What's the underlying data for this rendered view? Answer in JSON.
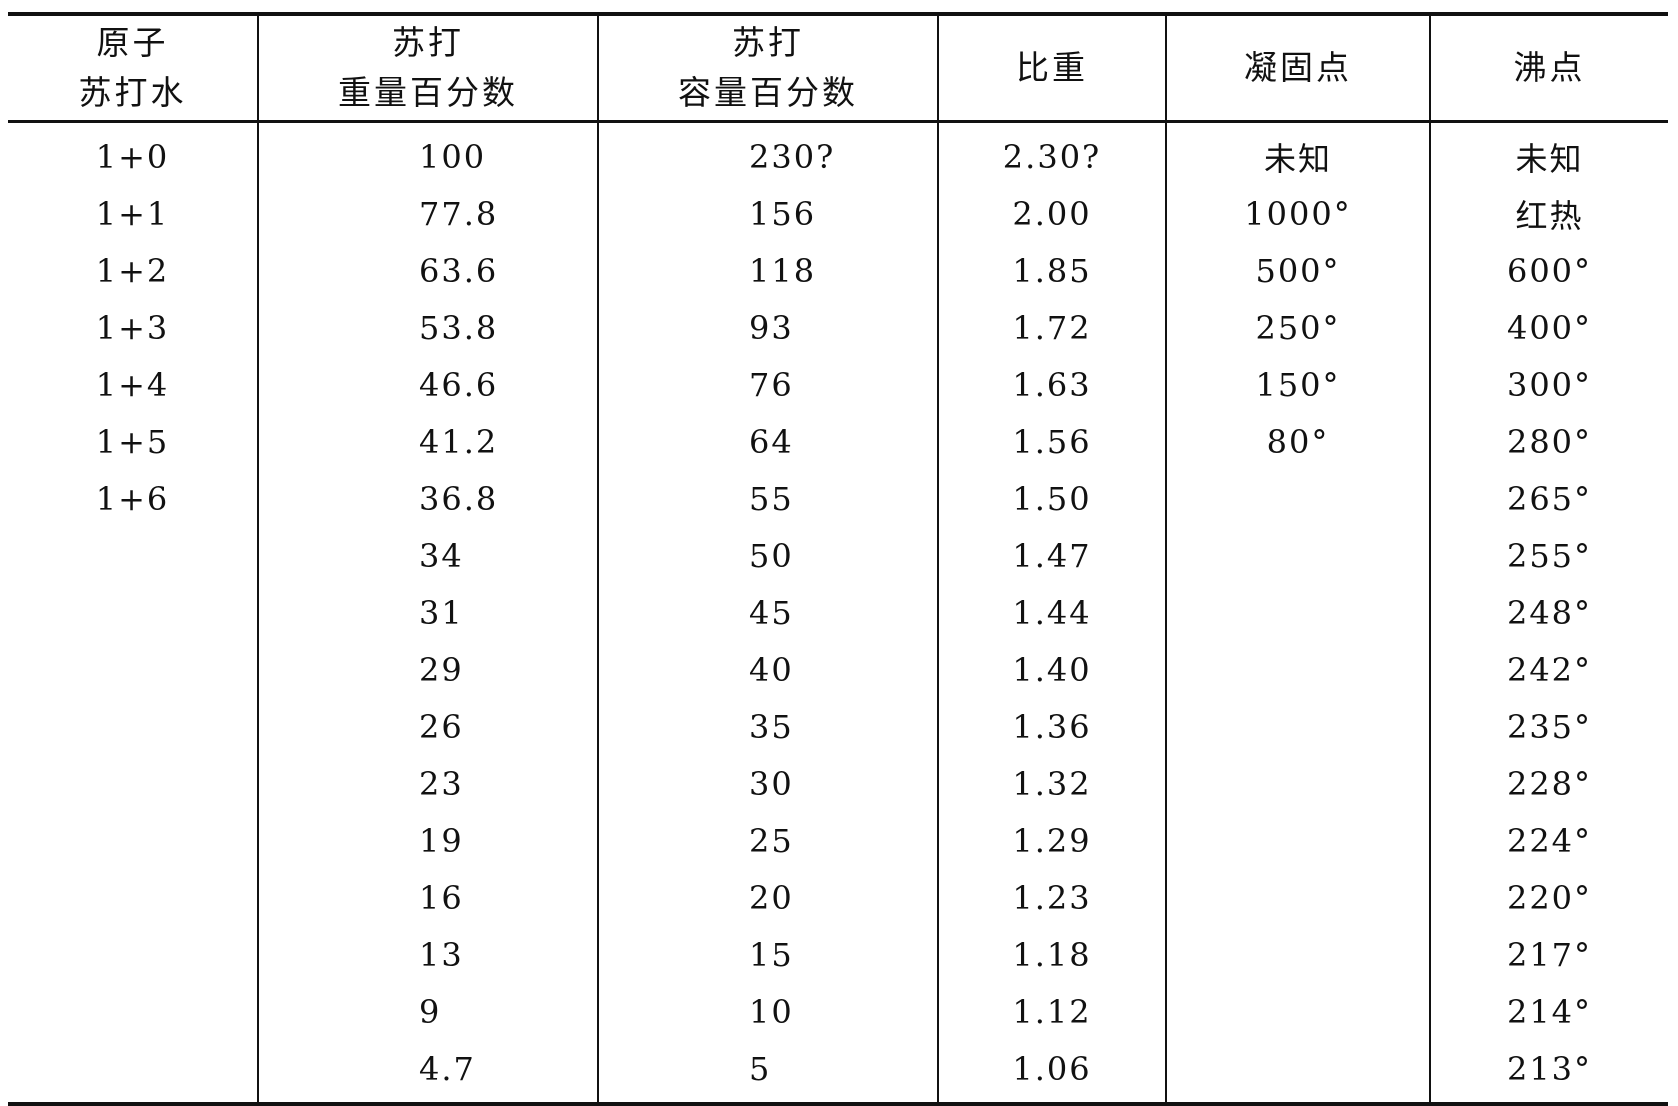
{
  "table": {
    "headers": [
      {
        "line1": "原子",
        "line2": "苏打水"
      },
      {
        "line1": "苏打",
        "line2": "重量百分数"
      },
      {
        "line1": "苏打",
        "line2": "容量百分数"
      },
      {
        "line1": "比重",
        "line2": ""
      },
      {
        "line1": "凝固点",
        "line2": ""
      },
      {
        "line1": "沸点",
        "line2": ""
      }
    ],
    "rows": [
      [
        "1+0",
        "100",
        "230?",
        "2.30?",
        "未知",
        "未知"
      ],
      [
        "1+1",
        "77.8",
        "156",
        "2.00",
        "1000°",
        "红热"
      ],
      [
        "1+2",
        "63.6",
        "118",
        "1.85",
        "500°",
        "600°"
      ],
      [
        "1+3",
        "53.8",
        "93",
        "1.72",
        "250°",
        "400°"
      ],
      [
        "1+4",
        "46.6",
        "76",
        "1.63",
        "150°",
        "300°"
      ],
      [
        "1+5",
        "41.2",
        "64",
        "1.56",
        "80°",
        "280°"
      ],
      [
        "1+6",
        "36.8",
        "55",
        "1.50",
        "",
        "265°"
      ],
      [
        "",
        "34",
        "50",
        "1.47",
        "",
        "255°"
      ],
      [
        "",
        "31",
        "45",
        "1.44",
        "",
        "248°"
      ],
      [
        "",
        "29",
        "40",
        "1.40",
        "",
        "242°"
      ],
      [
        "",
        "26",
        "35",
        "1.36",
        "",
        "235°"
      ],
      [
        "",
        "23",
        "30",
        "1.32",
        "",
        "228°"
      ],
      [
        "",
        "19",
        "25",
        "1.29",
        "",
        "224°"
      ],
      [
        "",
        "16",
        "20",
        "1.23",
        "",
        "220°"
      ],
      [
        "",
        "13",
        "15",
        "1.18",
        "",
        "217°"
      ],
      [
        "",
        "9",
        "10",
        "1.12",
        "",
        "214°"
      ],
      [
        "",
        "4.7",
        "5",
        "1.06",
        "",
        "213°"
      ]
    ]
  }
}
